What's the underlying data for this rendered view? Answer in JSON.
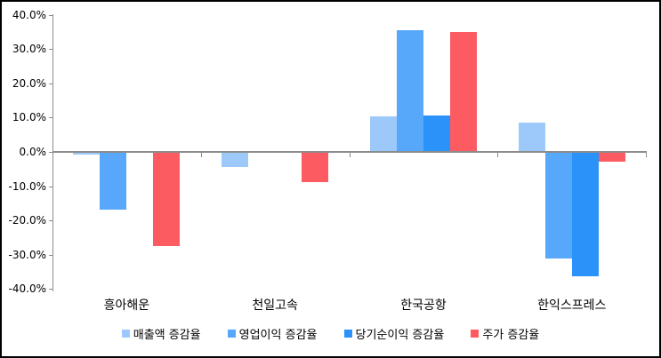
{
  "chart_data": {
    "type": "bar",
    "title": "",
    "xlabel": "",
    "ylabel": "",
    "categories": [
      "흥아해운",
      "천일고속",
      "한국공항",
      "한익스프레스"
    ],
    "series": [
      {
        "name": "매출액 증감율",
        "color": "#9CC9F9",
        "values": [
          -0.5,
          -4.2,
          10.0,
          8.2
        ]
      },
      {
        "name": "영업이익 증감율",
        "color": "#57A7FA",
        "values": [
          -16.5,
          0,
          35.2,
          -30.7
        ]
      },
      {
        "name": "당기순이익 증감율",
        "color": "#2B92FA",
        "values": [
          0,
          0,
          10.3,
          -35.9
        ]
      },
      {
        "name": "주가 증감율",
        "color": "#FB5B61",
        "values": [
          -27.2,
          -8.5,
          34.8,
          -2.5
        ]
      }
    ],
    "ylim": [
      -40,
      40
    ],
    "y_axis": {
      "tick_labels": [
        "40.0%",
        "30.0%",
        "20.0%",
        "10.0%",
        "0.0%",
        "-10.0%",
        "-20.0%",
        "-30.0%",
        "-40.0%"
      ],
      "tick_values": [
        40,
        30,
        20,
        10,
        0,
        -10,
        -20,
        -30,
        -40
      ]
    },
    "grid": false,
    "legend_position": "bottom",
    "axis_color": "#8c8c8c"
  }
}
